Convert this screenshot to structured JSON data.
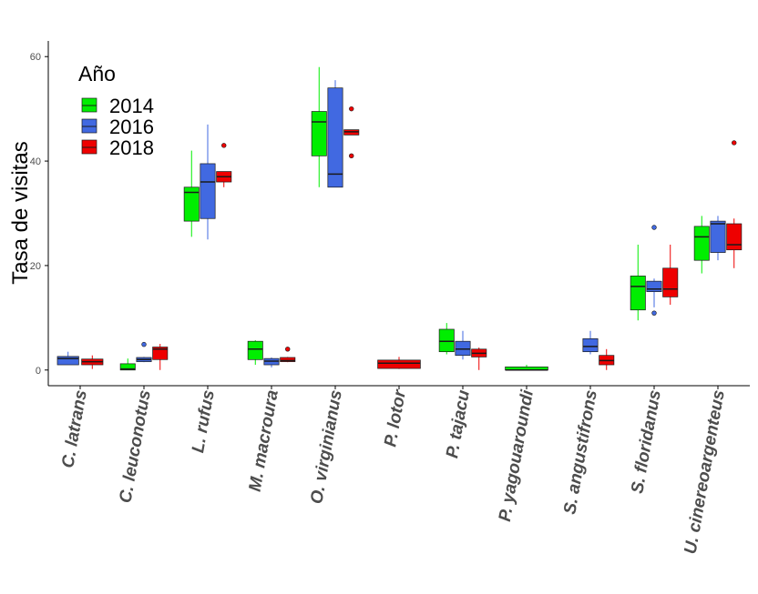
{
  "chart_data": {
    "type": "boxplot",
    "ylabel": "Tasa de visitas",
    "xlabel": "",
    "ylim": [
      -3,
      63
    ],
    "yticks": [
      0,
      20,
      40,
      60
    ],
    "grid": false,
    "legend": {
      "title": "Año",
      "placement": "top-left"
    },
    "categories": [
      "C. latrans",
      "C. leuconotus",
      "L. rufus",
      "M. macroura",
      "O. virginianus",
      "P. lotor",
      "P. tajacu",
      "P. yagouaroundi",
      "S. angustifrons",
      "S. floridanus",
      "U. cinereoargenteus"
    ],
    "series": [
      {
        "name": "2014",
        "color": "#00ee00"
      },
      {
        "name": "2016",
        "color": "#4169e1"
      },
      {
        "name": "2018",
        "color": "#ee0000"
      }
    ],
    "boxes": [
      {
        "category": "C. latrans",
        "year": "2016",
        "wide": true,
        "min": 1,
        "q1": 1,
        "median": 2.2,
        "q3": 2.6,
        "max": 3.5,
        "outliers": []
      },
      {
        "category": "C. latrans",
        "year": "2018",
        "wide": true,
        "min": 0.2,
        "q1": 1,
        "median": 1.6,
        "q3": 2.1,
        "max": 2.8,
        "outliers": []
      },
      {
        "category": "C. leuconotus",
        "year": "2014",
        "min": 0,
        "q1": 0,
        "median": 0.2,
        "q3": 1.2,
        "max": 2.2,
        "outliers": []
      },
      {
        "category": "C. leuconotus",
        "year": "2016",
        "min": 1.5,
        "q1": 1.6,
        "median": 2,
        "q3": 2.4,
        "max": 2.5,
        "outliers": [
          4.9
        ]
      },
      {
        "category": "C. leuconotus",
        "year": "2018",
        "min": 0,
        "q1": 2,
        "median": 4,
        "q3": 4.4,
        "max": 5,
        "outliers": []
      },
      {
        "category": "L. rufus",
        "year": "2014",
        "min": 25.5,
        "q1": 28.5,
        "median": 34,
        "q3": 35,
        "max": 42,
        "outliers": []
      },
      {
        "category": "L. rufus",
        "year": "2016",
        "min": 25,
        "q1": 29,
        "median": 36,
        "q3": 39.5,
        "max": 47,
        "outliers": []
      },
      {
        "category": "L. rufus",
        "year": "2018",
        "min": 35,
        "q1": 36,
        "median": 37,
        "q3": 38,
        "max": 38,
        "outliers": [
          43
        ]
      },
      {
        "category": "M. macroura",
        "year": "2014",
        "min": 1,
        "q1": 2,
        "median": 4,
        "q3": 5.5,
        "max": 5.7,
        "outliers": []
      },
      {
        "category": "M. macroura",
        "year": "2016",
        "min": 0.5,
        "q1": 1,
        "median": 1.7,
        "q3": 2.2,
        "max": 2.4,
        "outliers": []
      },
      {
        "category": "M. macroura",
        "year": "2018",
        "min": 1.5,
        "q1": 1.6,
        "median": 1.8,
        "q3": 2.4,
        "max": 2.5,
        "outliers": [
          4
        ]
      },
      {
        "category": "O. virginianus",
        "year": "2014",
        "min": 35,
        "q1": 41,
        "median": 47.5,
        "q3": 49.5,
        "max": 58,
        "outliers": []
      },
      {
        "category": "O. virginianus",
        "year": "2016",
        "min": 35,
        "q1": 35,
        "median": 37.5,
        "q3": 54,
        "max": 55.5,
        "outliers": []
      },
      {
        "category": "O. virginianus",
        "year": "2018",
        "min": 45,
        "q1": 45,
        "median": 45.6,
        "q3": 46,
        "max": 46,
        "outliers": [
          50,
          41
        ]
      },
      {
        "category": "P. lotor",
        "year": "2018",
        "wide": true,
        "min": 0.2,
        "q1": 0.3,
        "median": 1.3,
        "q3": 1.9,
        "max": 2.5,
        "outliers": []
      },
      {
        "category": "P. tajacu",
        "year": "2014",
        "min": 3,
        "q1": 3.5,
        "median": 5.5,
        "q3": 7.8,
        "max": 9,
        "outliers": []
      },
      {
        "category": "P. tajacu",
        "year": "2016",
        "min": 2,
        "q1": 2.8,
        "median": 4,
        "q3": 5.5,
        "max": 7.5,
        "outliers": []
      },
      {
        "category": "P. tajacu",
        "year": "2018",
        "min": 0,
        "q1": 2.5,
        "median": 3.2,
        "q3": 4,
        "max": 4.3,
        "outliers": []
      },
      {
        "category": "P. yagouaroundi",
        "year": "2014",
        "wide": true,
        "min": 0,
        "q1": 0,
        "median": 0,
        "q3": 0.6,
        "max": 1,
        "outliers": []
      },
      {
        "category": "S. angustifrons",
        "year": "2016",
        "min": 3,
        "q1": 3.5,
        "median": 4.5,
        "q3": 6,
        "max": 7.5,
        "outliers": []
      },
      {
        "category": "S. angustifrons",
        "year": "2018",
        "min": 0,
        "q1": 1,
        "median": 1.8,
        "q3": 2.8,
        "max": 4,
        "outliers": []
      },
      {
        "category": "S. floridanus",
        "year": "2014",
        "min": 9.5,
        "q1": 11.5,
        "median": 16,
        "q3": 18,
        "max": 24,
        "outliers": []
      },
      {
        "category": "S. floridanus",
        "year": "2016",
        "min": 12,
        "q1": 15,
        "median": 15.5,
        "q3": 17,
        "max": 17.5,
        "outliers": [
          27.3,
          10.9
        ]
      },
      {
        "category": "S. floridanus",
        "year": "2018",
        "min": 12.5,
        "q1": 14,
        "median": 15.5,
        "q3": 19.5,
        "max": 24,
        "outliers": []
      },
      {
        "category": "U. cinereoargenteus",
        "year": "2014",
        "min": 18.5,
        "q1": 21,
        "median": 25.5,
        "q3": 27.5,
        "max": 29.5,
        "outliers": []
      },
      {
        "category": "U. cinereoargenteus",
        "year": "2016",
        "min": 21,
        "q1": 22.5,
        "median": 28,
        "q3": 28.5,
        "max": 29.5,
        "outliers": []
      },
      {
        "category": "U. cinereoargenteus",
        "year": "2018",
        "min": 19.5,
        "q1": 23,
        "median": 24,
        "q3": 28,
        "max": 29,
        "outliers": [
          43.5
        ]
      }
    ]
  }
}
